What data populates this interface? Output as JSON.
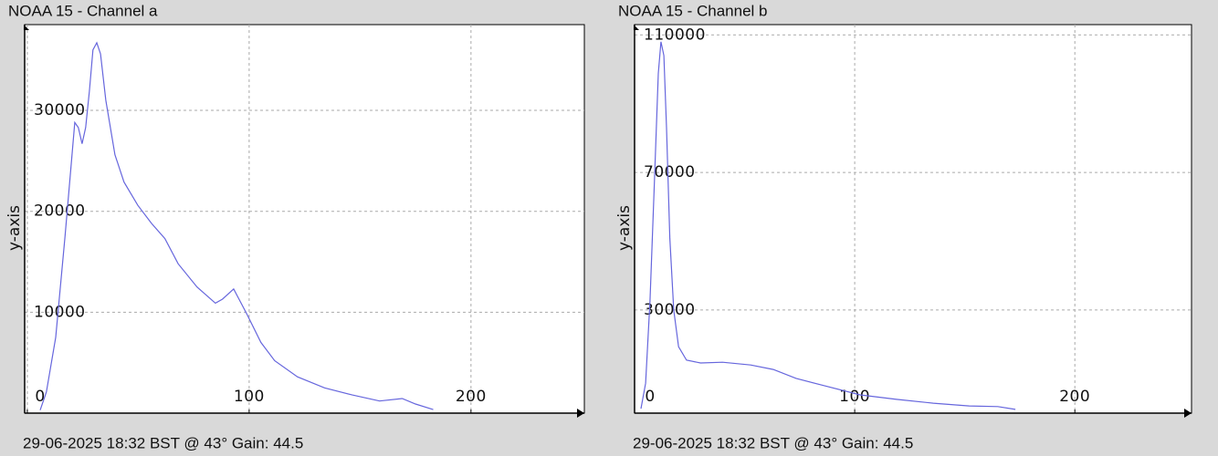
{
  "chart_data": [
    {
      "type": "line",
      "title": "NOAA 15 - Channel a",
      "ylabel": "y-axis",
      "footer": "29-06-2025 18:32 BST @ 43° Gain: 44.5",
      "color": "#6666dd",
      "grid": true,
      "x": [
        5.8,
        8.6,
        12.8,
        17,
        20,
        21.4,
        23,
        24.7,
        26.3,
        28,
        29.6,
        31.3,
        33,
        35.4,
        39.5,
        43.6,
        49.8,
        56,
        62,
        68,
        76.5,
        84.8,
        88,
        93,
        99,
        105.3,
        111.5,
        121.8,
        134,
        146.5,
        158.8,
        169,
        175,
        183
      ],
      "values": [
        300,
        2100,
        7500,
        17500,
        25200,
        28800,
        28300,
        26700,
        28300,
        31900,
        36000,
        36700,
        35600,
        31000,
        25600,
        22900,
        20600,
        18800,
        17300,
        14800,
        12500,
        10900,
        11300,
        12300,
        9800,
        7000,
        5200,
        3600,
        2500,
        1800,
        1200,
        1450,
        900,
        350
      ],
      "xlim": [
        -1.2,
        251.1
      ],
      "xticks": [
        0,
        100,
        200
      ],
      "ylim": [
        0,
        38500
      ],
      "yticks": [
        10000,
        20000,
        30000
      ]
    },
    {
      "type": "line",
      "title": "NOAA 15 - Channel b",
      "ylabel": "y-axis",
      "footer": "29-06-2025 18:32 BST @ 43° Gain: 44.5",
      "color": "#6666dd",
      "grid": true,
      "x": [
        2.9,
        5,
        7,
        9,
        10.8,
        12,
        13.3,
        14.5,
        16,
        17.8,
        20,
        23.6,
        30,
        40,
        52.7,
        63,
        73.4,
        86,
        102.5,
        119,
        135.7,
        152,
        165,
        173
      ],
      "values": [
        1300,
        8700,
        32600,
        67000,
        98800,
        108000,
        104000,
        83000,
        51000,
        30000,
        19300,
        15400,
        14600,
        14800,
        14000,
        12700,
        10100,
        8000,
        5300,
        4000,
        2900,
        2100,
        1900,
        1100
      ],
      "xlim": [
        0,
        253
      ],
      "xticks": [
        0,
        100,
        200
      ],
      "ylim": [
        0,
        113000
      ],
      "yticks": [
        30000,
        70000,
        110000
      ]
    }
  ]
}
